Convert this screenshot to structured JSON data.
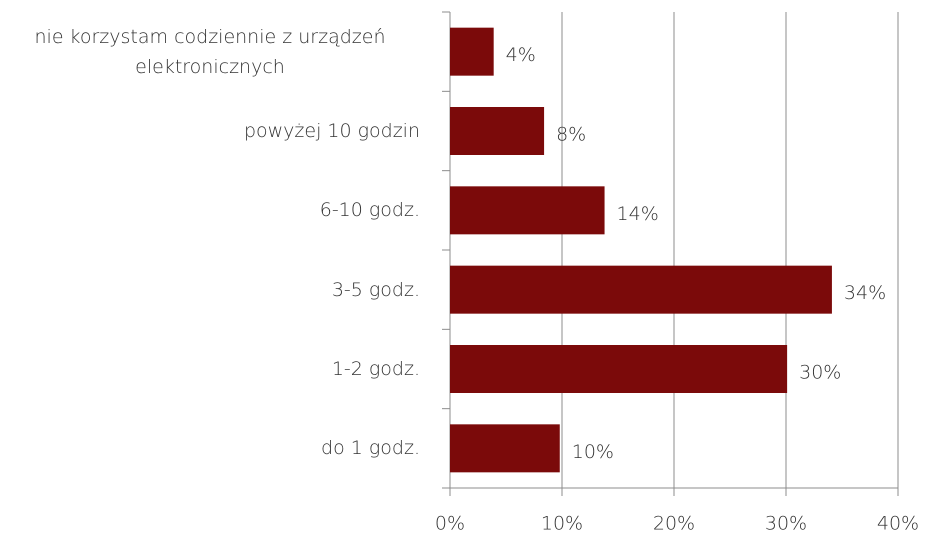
{
  "chart_data": {
    "type": "hbar",
    "categories": [
      "nie korzystam codziennie z urządzeń elektronicznych",
      "powyżej 10 godzin",
      "6-10 godz.",
      "3-5 godz.",
      "1-2 godz.",
      "do 1 godz."
    ],
    "values": [
      3.9,
      8.4,
      13.8,
      34.1,
      30.1,
      9.8
    ],
    "value_labels": [
      "4%",
      "8%",
      "14%",
      "34%",
      "30%",
      "10%"
    ],
    "color": "#7b0a0a",
    "xlim": [
      0,
      40
    ],
    "xticks": [
      {
        "value": 0,
        "label": "0%"
      },
      {
        "value": 10,
        "label": "10%"
      },
      {
        "value": 20,
        "label": "20%"
      },
      {
        "value": 30,
        "label": "30%"
      },
      {
        "value": 40,
        "label": "40%"
      }
    ],
    "grid": true
  }
}
